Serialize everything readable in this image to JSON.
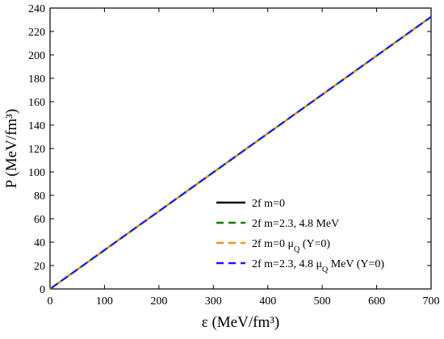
{
  "chart_data": {
    "type": "line",
    "xlabel": "ε (MeV/fm³)",
    "ylabel": "P (MeV/fm³)",
    "xlim": [
      0,
      700
    ],
    "ylim": [
      0,
      240
    ],
    "xticks": [
      0,
      100,
      200,
      300,
      400,
      500,
      600,
      700
    ],
    "yticks": [
      0,
      20,
      40,
      60,
      80,
      100,
      120,
      140,
      160,
      180,
      200,
      220,
      240
    ],
    "grid": false,
    "legend_position": "bottom-right",
    "series": [
      {
        "label_main": "2f m=0",
        "label_sub": "",
        "label_tail": "",
        "color": "#000000",
        "style": "solid",
        "x": [
          0,
          700
        ],
        "y": [
          0,
          232.5
        ]
      },
      {
        "label_main": "2f m=2.3, 4.8 MeV",
        "label_sub": "",
        "label_tail": "",
        "color": "#0a7f0a",
        "style": "dashed",
        "x": [
          0,
          700
        ],
        "y": [
          0,
          232.5
        ]
      },
      {
        "label_main": "2f m=0 μ",
        "label_sub": "Q",
        "label_tail": " (Y=0)",
        "color": "#ff8c1a",
        "style": "dashed",
        "x": [
          0,
          700
        ],
        "y": [
          0,
          232.5
        ]
      },
      {
        "label_main": "2f m=2.3, 4.8 μ",
        "label_sub": "Q",
        "label_tail": " MeV (Y=0)",
        "color": "#1a1aff",
        "style": "dashed",
        "x": [
          0,
          700
        ],
        "y": [
          0,
          232.5
        ]
      }
    ]
  }
}
